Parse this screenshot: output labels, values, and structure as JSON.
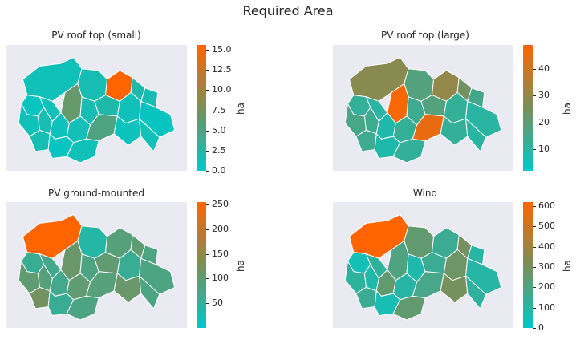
{
  "figure": {
    "title": "Required Area"
  },
  "colors": {
    "low": "#00c8c8",
    "mid": "#7a8f5a",
    "high": "#ff6400",
    "background": "#eaeaf2"
  },
  "chart_data": [
    {
      "type": "choropleth",
      "title": "PV roof top (small)",
      "colorbar_label": "ha",
      "vmin": 0,
      "vmax": 15.6,
      "ticks": [
        0.0,
        2.5,
        5.0,
        7.5,
        10.0,
        12.5,
        15.0
      ],
      "tick_labels": [
        "0.0",
        "2.5",
        "5.0",
        "7.5",
        "10.0",
        "12.5",
        "15.0"
      ],
      "region_values": [
        1.0,
        1.5,
        15.6,
        2.0,
        1.5,
        6.5,
        0.5,
        1.0,
        1.5,
        2.0,
        1.0,
        0.5,
        1.0,
        1.5,
        0.8,
        1.2,
        5.0,
        0.8,
        1.0,
        1.5,
        0.5,
        1.0
      ]
    },
    {
      "type": "choropleth",
      "title": "PV roof top (large)",
      "colorbar_label": "ha",
      "vmin": 2,
      "vmax": 49,
      "ticks": [
        10,
        20,
        30,
        40
      ],
      "tick_labels": [
        "10",
        "20",
        "30",
        "40"
      ],
      "region_values": [
        28,
        18,
        30,
        24,
        15,
        48,
        12,
        10,
        14,
        18,
        12,
        10,
        16,
        14,
        8,
        12,
        45,
        12,
        10,
        14,
        8,
        12
      ]
    },
    {
      "type": "choropleth",
      "title": "PV ground-mounted",
      "colorbar_label": "ha",
      "vmin": 0,
      "vmax": 255,
      "ticks": [
        50,
        100,
        150,
        200,
        250
      ],
      "tick_labels": [
        "50",
        "100",
        "150",
        "200",
        "250"
      ],
      "region_values": [
        255,
        40,
        90,
        100,
        80,
        110,
        60,
        70,
        80,
        100,
        60,
        80,
        100,
        90,
        70,
        100,
        90,
        110,
        80,
        120,
        60,
        80
      ]
    },
    {
      "type": "choropleth",
      "title": "Wind",
      "colorbar_label": "ha",
      "vmin": 0,
      "vmax": 620,
      "ticks": [
        0,
        100,
        200,
        300,
        400,
        500,
        600
      ],
      "tick_labels": [
        "0",
        "100",
        "200",
        "300",
        "400",
        "500",
        "600"
      ],
      "region_values": [
        620,
        250,
        150,
        300,
        100,
        200,
        50,
        120,
        80,
        150,
        280,
        100,
        120,
        80,
        250,
        100,
        180,
        300,
        120,
        150,
        60,
        250
      ]
    }
  ]
}
